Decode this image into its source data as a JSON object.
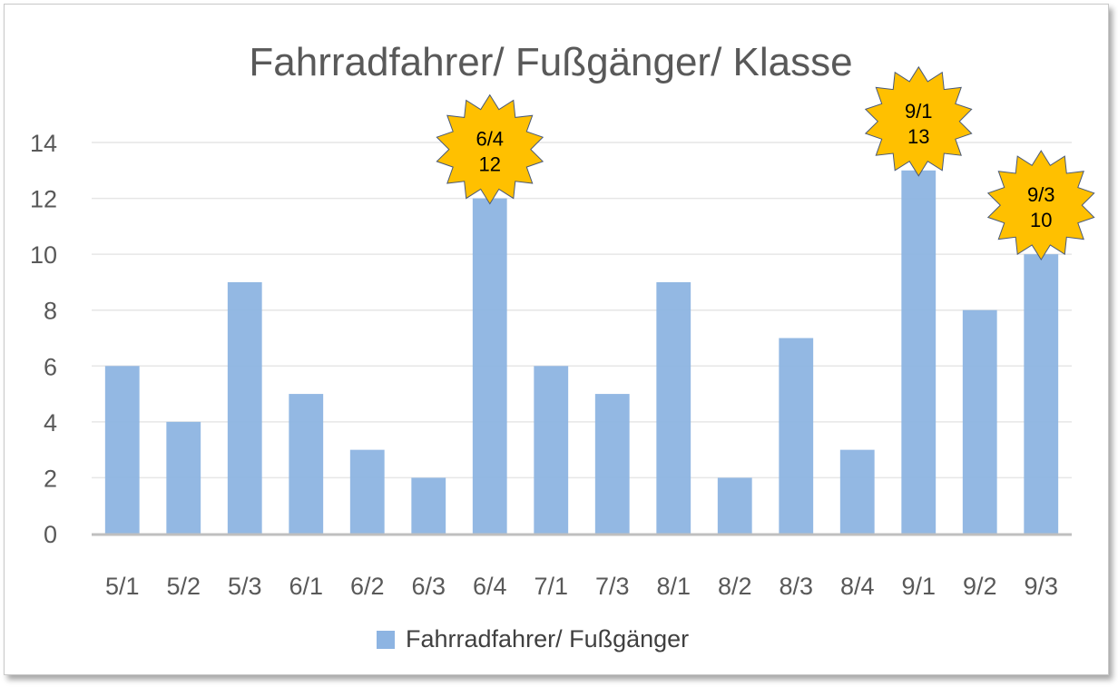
{
  "chart_data": {
    "type": "bar",
    "title": "Fahrradfahrer/ Fußgänger/ Klasse",
    "xlabel": "",
    "ylabel": "",
    "categories": [
      "5/1",
      "5/2",
      "5/3",
      "6/1",
      "6/2",
      "6/3",
      "6/4",
      "7/1",
      "7/3",
      "8/1",
      "8/2",
      "8/3",
      "8/4",
      "9/1",
      "9/2",
      "9/3"
    ],
    "series": [
      {
        "name": "Fahrradfahrer/ Fußgänger",
        "values": [
          6,
          4,
          9,
          5,
          3,
          2,
          12,
          6,
          5,
          9,
          2,
          7,
          3,
          13,
          8,
          10
        ]
      }
    ],
    "ylim": [
      0,
      14
    ],
    "yticks": [
      0,
      2,
      4,
      6,
      8,
      10,
      12,
      14
    ],
    "grid": true,
    "legend_position": "bottom",
    "bar_color": "#8db4e2",
    "annotations": [
      {
        "category": "6/4",
        "line1": "6/4",
        "line2": "12",
        "shape": "starburst",
        "color": "#ffc000"
      },
      {
        "category": "9/1",
        "line1": "9/1",
        "line2": "13",
        "shape": "starburst",
        "color": "#ffc000"
      },
      {
        "category": "9/3",
        "line1": "9/3",
        "line2": "10",
        "shape": "starburst",
        "color": "#ffc000"
      }
    ]
  }
}
